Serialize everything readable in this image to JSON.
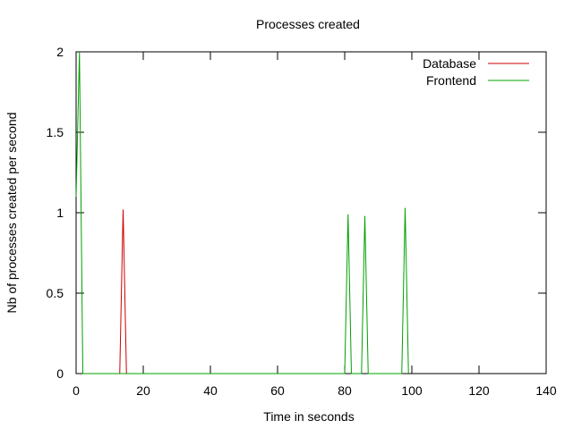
{
  "chart_data": {
    "type": "line",
    "title": "Processes created",
    "xlabel": "Time in seconds",
    "ylabel": "Nb of processes created per second",
    "xlim": [
      0,
      140
    ],
    "ylim": [
      0,
      2
    ],
    "x_ticks": [
      0,
      20,
      40,
      60,
      80,
      100,
      120,
      140
    ],
    "y_ticks": [
      0,
      0.5,
      1,
      1.5,
      2
    ],
    "x_tick_labels": [
      "0",
      "20",
      "40",
      "60",
      "80",
      "100",
      "120",
      "140"
    ],
    "y_tick_labels": [
      "0",
      "0.5",
      "1",
      "1.5",
      "2"
    ],
    "grid": false,
    "legend_position": "top-right",
    "series": [
      {
        "name": "Database",
        "color": "#cc0000",
        "points": [
          [
            13,
            0
          ],
          [
            14,
            1.02
          ],
          [
            15,
            0
          ]
        ]
      },
      {
        "name": "Frontend",
        "color": "#00a000",
        "points": [
          [
            0,
            1.1
          ],
          [
            1,
            2
          ],
          [
            2,
            0
          ],
          [
            80,
            0
          ],
          [
            81,
            0.99
          ],
          [
            82,
            0
          ],
          [
            85,
            0
          ],
          [
            86,
            0.98
          ],
          [
            87,
            0
          ],
          [
            97,
            0
          ],
          [
            98,
            1.03
          ],
          [
            99,
            0
          ]
        ]
      }
    ]
  }
}
